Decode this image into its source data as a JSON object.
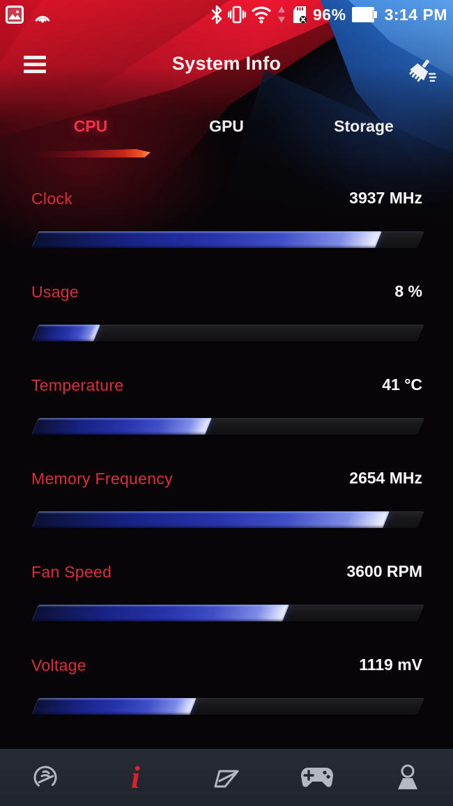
{
  "status_bar": {
    "time": "3:14 PM",
    "battery_percent": "96%",
    "left_icons": [
      "gallery-icon",
      "cast-icon"
    ],
    "right_icons": [
      "bluetooth-icon",
      "vibrate-icon",
      "wifi-icon",
      "data-arrows-icon",
      "sd-card-icon",
      "battery-icon"
    ]
  },
  "header": {
    "title": "System Info",
    "menu_icon": "hamburger-icon",
    "clean_icon": "broom-icon"
  },
  "tabs": [
    {
      "label": "CPU",
      "active": true
    },
    {
      "label": "GPU",
      "active": false
    },
    {
      "label": "Storage",
      "active": false
    }
  ],
  "stats": [
    {
      "label": "Clock",
      "value": "3937 MHz",
      "percent": 89
    },
    {
      "label": "Usage",
      "value": "8 %",
      "percent": 16
    },
    {
      "label": "Temperature",
      "value": "41 °C",
      "percent": 45
    },
    {
      "label": "Memory Frequency",
      "value": "2654 MHz",
      "percent": 91
    },
    {
      "label": "Fan Speed",
      "value": "3600 RPM",
      "percent": 65
    },
    {
      "label": "Voltage",
      "value": "1119 mV",
      "percent": 41
    }
  ],
  "bottom_nav": [
    {
      "name": "dashboard",
      "active": false
    },
    {
      "name": "system-info",
      "active": true
    },
    {
      "name": "console",
      "active": false
    },
    {
      "name": "games",
      "active": false
    },
    {
      "name": "profile",
      "active": false
    }
  ],
  "colors": {
    "label_red": "#dc2f3c",
    "tab_active_red": "#ef3347",
    "nav_active_red": "#d8232f",
    "bar_fill_dark": "#0c1134",
    "bar_fill_bright": "#f2f3ff",
    "bg_red": "#e01326",
    "bg_blue": "#2e7cdd"
  }
}
